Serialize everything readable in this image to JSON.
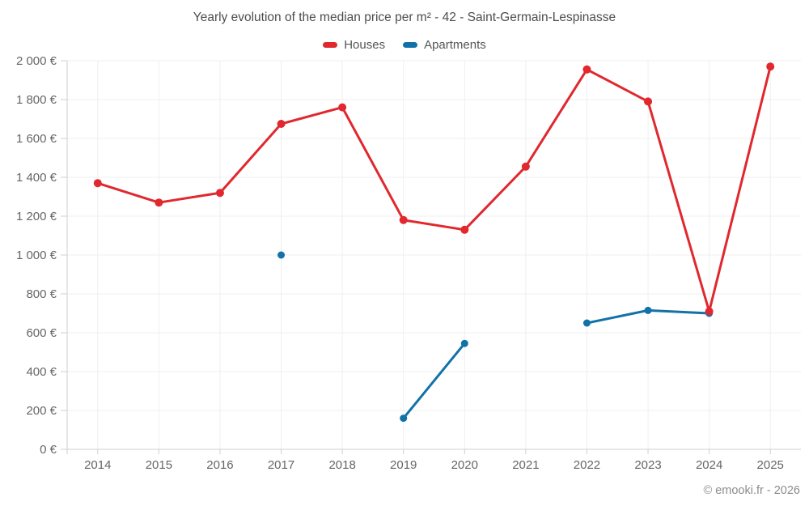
{
  "chart_data": {
    "type": "line",
    "title": "Yearly evolution of the median price per m² - 42 - Saint-Germain-Lespinasse",
    "categories": [
      "2014",
      "2015",
      "2016",
      "2017",
      "2018",
      "2019",
      "2020",
      "2021",
      "2022",
      "2023",
      "2024",
      "2025"
    ],
    "series": [
      {
        "name": "Houses",
        "color": "#e0282e",
        "values": [
          1370,
          1270,
          1320,
          1675,
          1760,
          1180,
          1130,
          1455,
          1955,
          1790,
          710,
          1970
        ]
      },
      {
        "name": "Apartments",
        "color": "#1272a8",
        "values": [
          null,
          null,
          null,
          1000,
          null,
          160,
          545,
          null,
          650,
          715,
          700,
          null
        ]
      }
    ],
    "ylim": [
      0,
      2000
    ],
    "ytick_values": [
      0,
      200,
      400,
      600,
      800,
      1000,
      1200,
      1400,
      1600,
      1800,
      2000
    ],
    "ytick_labels": [
      "0 €",
      "200 €",
      "400 €",
      "600 €",
      "800 €",
      "1 000 €",
      "1 200 €",
      "1 400 €",
      "1 600 €",
      "1 800 €",
      "2 000 €"
    ],
    "grid": true,
    "legend_position": "top"
  },
  "footer": {
    "text": "© emooki.fr - 2026"
  },
  "colors": {
    "houses": "#e0282e",
    "apartments": "#1272a8",
    "gridline": "#efefef",
    "axis": "#cfcfcf",
    "tick_text": "#666666",
    "title_text": "#4d4d4d",
    "footer_text": "#8c8c8c",
    "background": "#ffffff"
  }
}
